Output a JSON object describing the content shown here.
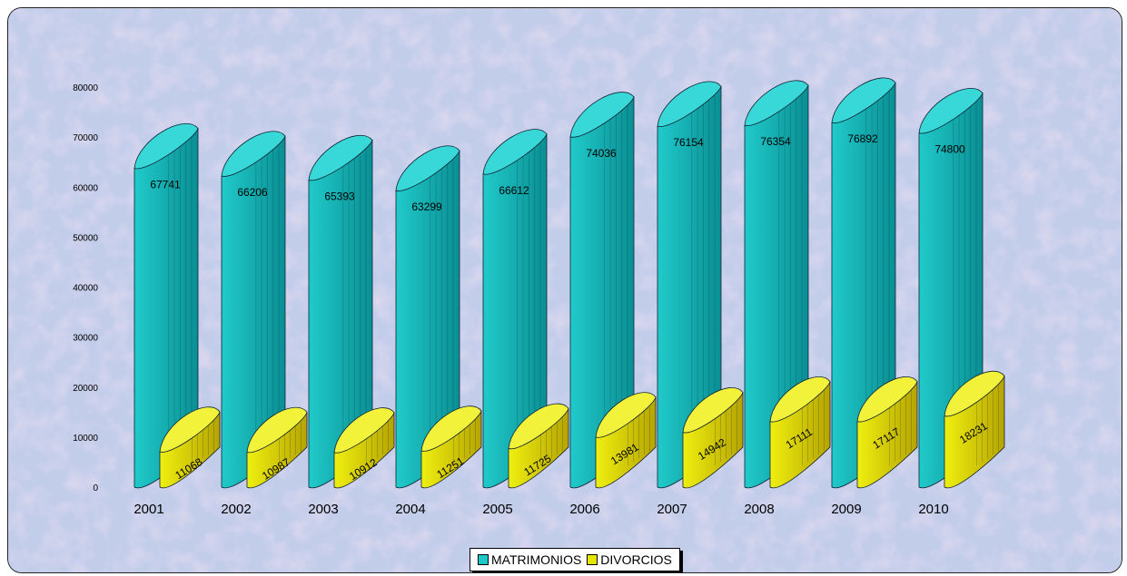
{
  "chart_data": {
    "type": "bar",
    "categories": [
      "2001",
      "2002",
      "2003",
      "2004",
      "2005",
      "2006",
      "2007",
      "2008",
      "2009",
      "2010"
    ],
    "series": [
      {
        "name": "MATRIMONIOS",
        "values": [
          67741,
          66206,
          65393,
          63299,
          66612,
          74036,
          76154,
          76354,
          76892,
          74800
        ],
        "color": "#1cc8c8"
      },
      {
        "name": "DIVORCIOS",
        "values": [
          11068,
          10987,
          10912,
          11251,
          11725,
          13981,
          14942,
          17111,
          17117,
          18231
        ],
        "color": "#e6e600"
      }
    ],
    "y_ticks": [
      "0",
      "10000",
      "20000",
      "30000",
      "40000",
      "50000",
      "60000",
      "70000",
      "80000"
    ],
    "ylim": [
      0,
      80000
    ],
    "title": "",
    "xlabel": "",
    "ylabel": "",
    "legend_position": "bottom",
    "grid": false,
    "style": "3d-cylinder"
  }
}
